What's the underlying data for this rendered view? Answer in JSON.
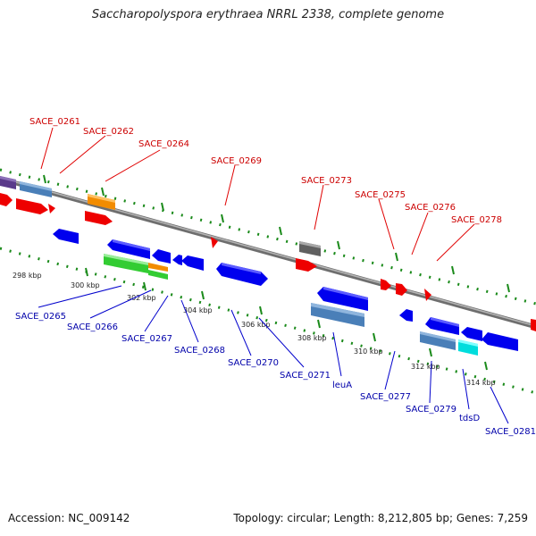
{
  "header": {
    "title": "Saccharopolyspora erythraea NRRL 2338, complete genome"
  },
  "footer": {
    "accession": "Accession: NC_009142",
    "summary": "Topology: circular; Length: 8,212,805 bp; Genes: 7,259"
  },
  "scale": {
    "ticks": [
      {
        "label": "298 kbp"
      },
      {
        "label": "300 kbp"
      },
      {
        "label": "302 kbp"
      },
      {
        "label": "304 kbp"
      },
      {
        "label": "306 kbp"
      },
      {
        "label": "308 kbp"
      },
      {
        "label": "310 kbp"
      },
      {
        "label": "312 kbp"
      },
      {
        "label": "314 kbp"
      }
    ]
  },
  "gene_labels": {
    "top": [
      "SACE_0261",
      "SACE_0262",
      "SACE_0264",
      "SACE_0269",
      "SACE_0273",
      "SACE_0275",
      "SACE_0276",
      "SACE_0278"
    ],
    "bottom": [
      "SACE_0265",
      "SACE_0266",
      "SACE_0267",
      "SACE_0268",
      "SACE_0270",
      "SACE_0271",
      "leuA",
      "SACE_0277",
      "SACE_0279",
      "tdsD",
      "SACE_0281"
    ]
  },
  "colors": {
    "backbone": "#808080",
    "forward_gene": "#ff0000",
    "reverse_gene": "#0000ee",
    "feature_steelblue": "#4a7fb8",
    "feature_orange": "#f28c00",
    "feature_gray": "#606060",
    "feature_green": "#33cc33",
    "feature_cyan": "#00dddd",
    "feature_purple": "#5a3a8a",
    "tick_green": "#1a8a1a",
    "top_label": "#cc0000",
    "bottom_label": "#0000aa"
  }
}
